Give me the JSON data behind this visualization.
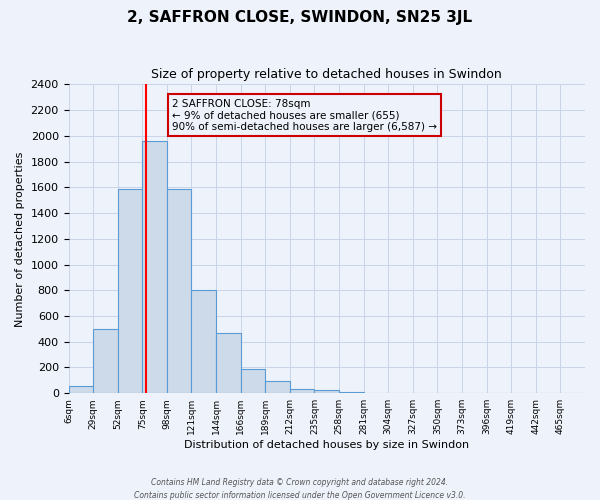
{
  "title": "2, SAFFRON CLOSE, SWINDON, SN25 3JL",
  "subtitle": "Size of property relative to detached houses in Swindon",
  "xlabel": "Distribution of detached houses by size in Swindon",
  "ylabel": "Number of detached properties",
  "bin_labels": [
    "6sqm",
    "29sqm",
    "52sqm",
    "75sqm",
    "98sqm",
    "121sqm",
    "144sqm",
    "166sqm",
    "189sqm",
    "212sqm",
    "235sqm",
    "258sqm",
    "281sqm",
    "304sqm",
    "327sqm",
    "350sqm",
    "373sqm",
    "396sqm",
    "419sqm",
    "442sqm",
    "465sqm"
  ],
  "bar_heights": [
    55,
    500,
    1590,
    1960,
    1590,
    800,
    470,
    190,
    95,
    35,
    25,
    10,
    5,
    0,
    0,
    0,
    0,
    0,
    0,
    0,
    0
  ],
  "bar_color": "#ccdaea",
  "bar_edge_color": "#5b9bd5",
  "marker_bin_index": 3.13,
  "ylim": [
    0,
    2400
  ],
  "yticks": [
    0,
    200,
    400,
    600,
    800,
    1000,
    1200,
    1400,
    1600,
    1800,
    2000,
    2200,
    2400
  ],
  "annotation_title": "2 SAFFRON CLOSE: 78sqm",
  "annotation_line1": "← 9% of detached houses are smaller (655)",
  "annotation_line2": "90% of semi-detached houses are larger (6,587) →",
  "grid_color": "#c8d4e8",
  "background_color": "#eef2fa",
  "footer1": "Contains HM Land Registry data © Crown copyright and database right 2024.",
  "footer2": "Contains public sector information licensed under the Open Government Licence v3.0."
}
